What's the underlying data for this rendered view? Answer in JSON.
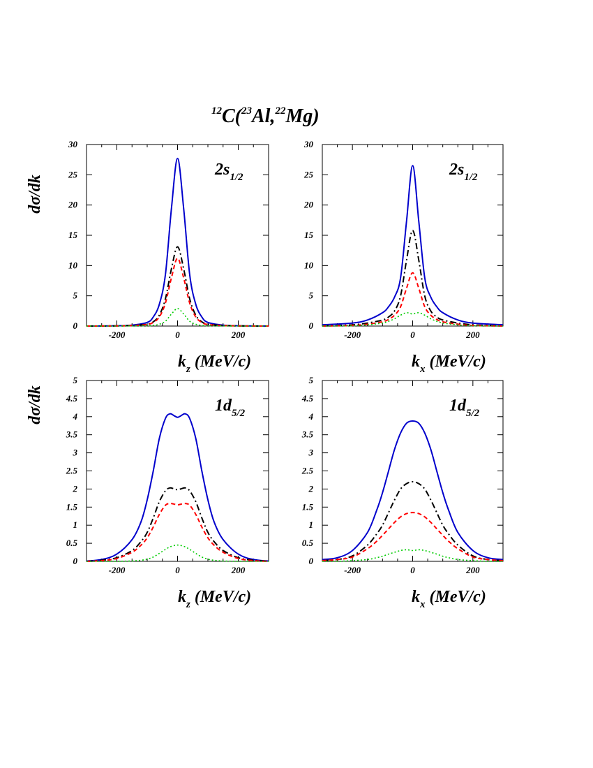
{
  "figure": {
    "title": {
      "sup1": "12",
      "part1": "C(",
      "sup2": "23",
      "part2": "Al,",
      "sup3": "22",
      "part3": "Mg)"
    },
    "ylabel": "dσ/dk"
  },
  "colors": {
    "total": "#0000cc",
    "stripping": "#000000",
    "diffraction": "#ff0000",
    "coulomb": "#00cc00"
  },
  "chart_data": [
    {
      "type": "line",
      "panel": "2s_1/2 vs k_z",
      "label": {
        "main": "2s",
        "sub": "1/2"
      },
      "xlabel": {
        "main": "k",
        "sub": "z",
        "unit": "(MeV/c)"
      },
      "xlim": [
        -300,
        300
      ],
      "ylim": [
        0,
        30
      ],
      "xticks": [
        -200,
        0,
        200
      ],
      "yticks": [
        0,
        5,
        10,
        15,
        20,
        25,
        30
      ],
      "x": [
        -300,
        -200,
        -150,
        -100,
        -80,
        -60,
        -40,
        -20,
        0,
        20,
        40,
        60,
        80,
        100,
        150,
        200,
        300
      ],
      "series": [
        {
          "style": "solid",
          "color": "#0000cc",
          "values": [
            0,
            0.05,
            0.15,
            0.6,
            1.5,
            3.6,
            8.5,
            19.5,
            27.7,
            19.5,
            8.5,
            3.6,
            1.5,
            0.6,
            0.15,
            0.05,
            0
          ]
        },
        {
          "style": "dashdot",
          "color": "#000000",
          "values": [
            0,
            0.02,
            0.1,
            0.3,
            0.7,
            1.8,
            4.5,
            9.5,
            13.1,
            9.5,
            4.5,
            1.8,
            0.7,
            0.3,
            0.1,
            0.02,
            0
          ]
        },
        {
          "style": "dashed",
          "color": "#ff0000",
          "values": [
            0,
            0.02,
            0.08,
            0.25,
            0.6,
            1.5,
            3.8,
            8.0,
            11.2,
            8.0,
            3.8,
            1.5,
            0.6,
            0.25,
            0.08,
            0.02,
            0
          ]
        },
        {
          "style": "dotted",
          "color": "#00cc00",
          "values": [
            0,
            0,
            0.02,
            0.05,
            0.1,
            0.3,
            0.8,
            2.0,
            2.9,
            2.0,
            0.8,
            0.3,
            0.1,
            0.05,
            0.02,
            0,
            0
          ]
        }
      ]
    },
    {
      "type": "line",
      "panel": "2s_1/2 vs k_x",
      "label": {
        "main": "2s",
        "sub": "1/2"
      },
      "xlabel": {
        "main": "k",
        "sub": "x",
        "unit": "(MeV/c)"
      },
      "xlim": [
        -300,
        300
      ],
      "ylim": [
        0,
        30
      ],
      "xticks": [
        -200,
        0,
        200
      ],
      "yticks": [
        0,
        5,
        10,
        15,
        20,
        25,
        30
      ],
      "x": [
        -300,
        -200,
        -150,
        -100,
        -80,
        -60,
        -40,
        -20,
        0,
        20,
        40,
        60,
        80,
        100,
        150,
        200,
        300
      ],
      "series": [
        {
          "style": "solid",
          "color": "#0000cc",
          "values": [
            0.2,
            0.5,
            1.0,
            2.2,
            3.2,
            4.8,
            8.0,
            17.5,
            26.5,
            17.5,
            8.0,
            4.8,
            3.2,
            2.2,
            1.0,
            0.5,
            0.2
          ]
        },
        {
          "style": "dashdot",
          "color": "#000000",
          "values": [
            0,
            0.2,
            0.5,
            1.0,
            1.5,
            2.5,
            5.0,
            11.0,
            15.8,
            11.0,
            5.0,
            2.5,
            1.5,
            1.0,
            0.5,
            0.2,
            0
          ]
        },
        {
          "style": "dashed",
          "color": "#ff0000",
          "values": [
            0,
            0.1,
            0.3,
            0.7,
            1.1,
            1.8,
            3.2,
            6.3,
            8.8,
            6.3,
            3.2,
            1.8,
            1.1,
            0.7,
            0.3,
            0.1,
            0
          ]
        },
        {
          "style": "dotted",
          "color": "#00cc00",
          "values": [
            0,
            0.05,
            0.2,
            0.5,
            0.8,
            1.2,
            1.8,
            2.2,
            2.0,
            2.2,
            1.8,
            1.2,
            0.8,
            0.5,
            0.2,
            0.05,
            0
          ]
        }
      ]
    },
    {
      "type": "line",
      "panel": "1d_5/2 vs k_z",
      "label": {
        "main": "1d",
        "sub": "5/2"
      },
      "xlabel": {
        "main": "k",
        "sub": "z",
        "unit": "(MeV/c)"
      },
      "xlim": [
        -300,
        300
      ],
      "ylim": [
        0,
        5
      ],
      "xticks": [
        -200,
        0,
        200
      ],
      "yticks": [
        0,
        0.5,
        1,
        1.5,
        2,
        2.5,
        3,
        3.5,
        4,
        4.5,
        5
      ],
      "x": [
        -300,
        -250,
        -200,
        -150,
        -120,
        -100,
        -80,
        -60,
        -40,
        -25,
        -10,
        0,
        10,
        25,
        40,
        60,
        80,
        100,
        120,
        150,
        200,
        250,
        300
      ],
      "series": [
        {
          "style": "solid",
          "color": "#0000cc",
          "values": [
            0.01,
            0.05,
            0.2,
            0.6,
            1.1,
            1.7,
            2.5,
            3.4,
            3.95,
            4.08,
            4.02,
            3.98,
            4.02,
            4.08,
            3.95,
            3.4,
            2.5,
            1.7,
            1.1,
            0.6,
            0.2,
            0.05,
            0.01
          ]
        },
        {
          "style": "dashdot",
          "color": "#000000",
          "values": [
            0,
            0.03,
            0.1,
            0.3,
            0.55,
            0.8,
            1.2,
            1.65,
            1.95,
            2.03,
            2.0,
            1.98,
            2.0,
            2.03,
            1.95,
            1.65,
            1.2,
            0.8,
            0.55,
            0.3,
            0.1,
            0.03,
            0
          ]
        },
        {
          "style": "dashed",
          "color": "#ff0000",
          "values": [
            0,
            0.02,
            0.08,
            0.25,
            0.45,
            0.65,
            0.95,
            1.3,
            1.55,
            1.6,
            1.58,
            1.56,
            1.58,
            1.6,
            1.55,
            1.3,
            0.95,
            0.65,
            0.45,
            0.25,
            0.08,
            0.02,
            0
          ]
        },
        {
          "style": "dotted",
          "color": "#00cc00",
          "values": [
            0,
            0,
            0,
            0.01,
            0.03,
            0.06,
            0.12,
            0.22,
            0.33,
            0.4,
            0.44,
            0.45,
            0.44,
            0.4,
            0.33,
            0.22,
            0.12,
            0.06,
            0.03,
            0.01,
            0,
            0,
            0
          ]
        }
      ]
    },
    {
      "type": "line",
      "panel": "1d_5/2 vs k_x",
      "label": {
        "main": "1d",
        "sub": "5/2"
      },
      "xlabel": {
        "main": "k",
        "sub": "x",
        "unit": "(MeV/c)"
      },
      "xlim": [
        -300,
        300
      ],
      "ylim": [
        0,
        5
      ],
      "xticks": [
        -200,
        0,
        200
      ],
      "yticks": [
        0,
        0.5,
        1,
        1.5,
        2,
        2.5,
        3,
        3.5,
        4,
        4.5,
        5
      ],
      "x": [
        -300,
        -250,
        -200,
        -150,
        -120,
        -100,
        -80,
        -60,
        -40,
        -20,
        0,
        20,
        40,
        60,
        80,
        100,
        120,
        150,
        200,
        250,
        300
      ],
      "series": [
        {
          "style": "solid",
          "color": "#0000cc",
          "values": [
            0.05,
            0.1,
            0.3,
            0.8,
            1.4,
            1.9,
            2.5,
            3.1,
            3.55,
            3.82,
            3.88,
            3.82,
            3.55,
            3.1,
            2.5,
            1.9,
            1.4,
            0.8,
            0.3,
            0.1,
            0.05
          ]
        },
        {
          "style": "dashdot",
          "color": "#000000",
          "values": [
            0.02,
            0.05,
            0.15,
            0.45,
            0.75,
            1.0,
            1.35,
            1.7,
            2.0,
            2.15,
            2.2,
            2.15,
            2.0,
            1.7,
            1.35,
            1.0,
            0.75,
            0.45,
            0.15,
            0.05,
            0.02
          ]
        },
        {
          "style": "dashed",
          "color": "#ff0000",
          "values": [
            0.02,
            0.05,
            0.12,
            0.35,
            0.55,
            0.72,
            0.9,
            1.08,
            1.23,
            1.32,
            1.35,
            1.32,
            1.23,
            1.08,
            0.9,
            0.72,
            0.55,
            0.35,
            0.12,
            0.05,
            0.02
          ]
        },
        {
          "style": "dotted",
          "color": "#00cc00",
          "values": [
            0,
            0,
            0.02,
            0.05,
            0.1,
            0.14,
            0.2,
            0.25,
            0.3,
            0.32,
            0.3,
            0.32,
            0.3,
            0.25,
            0.2,
            0.14,
            0.1,
            0.05,
            0.02,
            0,
            0
          ]
        }
      ]
    }
  ]
}
